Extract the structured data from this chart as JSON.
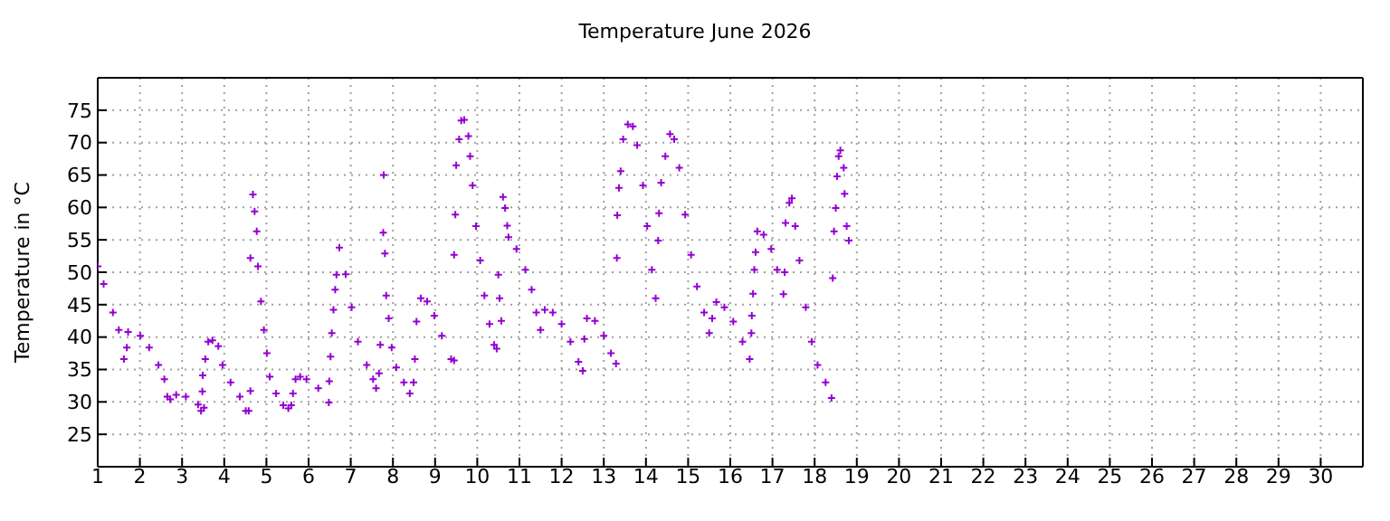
{
  "chart_data": {
    "type": "scatter",
    "title": "Temperature June 2026",
    "ylabel": "Temperature in °C",
    "xlim": [
      1,
      31
    ],
    "xticks": [
      1,
      2,
      3,
      4,
      5,
      6,
      7,
      8,
      9,
      10,
      11,
      12,
      13,
      14,
      15,
      16,
      17,
      18,
      19,
      20,
      21,
      22,
      23,
      24,
      25,
      26,
      27,
      28,
      29,
      30
    ],
    "ylim": [
      20,
      80
    ],
    "yticks": [
      25,
      30,
      35,
      40,
      45,
      50,
      55,
      60,
      65,
      70,
      75
    ],
    "grid": true,
    "marker": "cross",
    "series": [
      {
        "color": "#9400d3",
        "x": [
          1.0,
          1.14,
          1.36,
          1.5,
          1.62,
          1.69,
          1.72,
          2.01,
          2.22,
          2.44,
          2.58,
          2.65,
          2.72,
          2.86,
          3.09,
          3.38,
          3.45,
          3.52,
          3.48,
          3.49,
          3.55,
          3.62,
          3.72,
          3.86,
          3.96,
          4.15,
          4.37,
          4.51,
          4.58,
          4.62,
          4.62,
          4.68,
          4.72,
          4.77,
          4.8,
          4.87,
          4.94,
          5.01,
          5.08,
          5.23,
          5.4,
          5.52,
          5.59,
          5.63,
          5.69,
          5.8,
          5.95,
          6.23,
          6.48,
          6.49,
          6.52,
          6.55,
          6.59,
          6.63,
          6.66,
          6.73,
          6.88,
          7.02,
          7.17,
          7.38,
          7.53,
          7.6,
          7.67,
          7.7,
          7.77,
          7.78,
          7.81,
          7.84,
          7.9,
          7.97,
          8.08,
          8.26,
          8.4,
          8.49,
          8.52,
          8.56,
          8.66,
          8.81,
          8.98,
          9.16,
          9.38,
          9.45,
          9.45,
          9.48,
          9.5,
          9.57,
          9.62,
          9.69,
          9.79,
          9.83,
          9.89,
          9.97,
          10.07,
          10.17,
          10.29,
          10.4,
          10.46,
          10.5,
          10.53,
          10.57,
          10.61,
          10.66,
          10.71,
          10.74,
          10.93,
          11.14,
          11.29,
          11.4,
          11.5,
          11.6,
          11.79,
          12.0,
          12.21,
          12.4,
          12.5,
          12.54,
          12.6,
          12.79,
          13.0,
          13.17,
          13.29,
          13.31,
          13.32,
          13.36,
          13.4,
          13.46,
          13.57,
          13.69,
          13.79,
          13.93,
          14.03,
          14.14,
          14.23,
          14.29,
          14.31,
          14.36,
          14.46,
          14.57,
          14.67,
          14.79,
          14.93,
          15.07,
          15.21,
          15.38,
          15.5,
          15.57,
          15.67,
          15.86,
          16.07,
          16.29,
          16.46,
          16.5,
          16.51,
          16.54,
          16.57,
          16.6,
          16.64,
          16.79,
          16.97,
          17.11,
          17.26,
          17.29,
          17.31,
          17.4,
          17.46,
          17.54,
          17.64,
          17.79,
          17.93,
          18.07,
          18.26,
          18.4,
          18.43,
          18.46,
          18.5,
          18.53,
          18.57,
          18.61,
          18.69,
          18.71,
          18.76,
          18.81
        ],
        "values": [
          50.9,
          48.2,
          43.8,
          41.1,
          36.6,
          38.4,
          40.8,
          40.2,
          38.4,
          35.7,
          33.5,
          30.8,
          30.4,
          31.1,
          30.8,
          29.6,
          28.6,
          29.1,
          31.6,
          34.1,
          36.6,
          39.3,
          39.5,
          38.6,
          35.7,
          33.0,
          30.8,
          28.6,
          28.6,
          31.7,
          52.2,
          62.0,
          59.4,
          56.3,
          50.9,
          45.5,
          41.1,
          37.5,
          33.9,
          31.3,
          29.5,
          29.0,
          29.5,
          31.3,
          33.5,
          33.9,
          33.5,
          32.1,
          29.9,
          33.2,
          37.0,
          40.6,
          44.2,
          47.3,
          49.6,
          53.8,
          49.7,
          44.6,
          39.3,
          35.7,
          33.5,
          32.1,
          34.4,
          38.8,
          56.1,
          65.0,
          52.9,
          46.4,
          42.9,
          38.4,
          35.3,
          33.0,
          31.3,
          33.0,
          36.6,
          42.4,
          46.0,
          45.5,
          43.3,
          40.2,
          36.6,
          36.4,
          52.7,
          58.9,
          66.5,
          70.5,
          73.4,
          73.5,
          71.0,
          67.9,
          63.4,
          57.1,
          51.8,
          46.4,
          42.0,
          38.8,
          38.2,
          49.6,
          46.0,
          42.5,
          61.6,
          59.9,
          57.2,
          55.4,
          53.6,
          50.4,
          47.3,
          43.8,
          41.1,
          44.2,
          43.8,
          42.0,
          39.3,
          36.2,
          34.8,
          39.7,
          42.9,
          42.5,
          40.2,
          37.5,
          35.9,
          52.2,
          58.8,
          63.0,
          65.6,
          70.5,
          72.8,
          72.5,
          69.6,
          63.4,
          57.1,
          50.4,
          46.0,
          54.9,
          59.1,
          63.8,
          67.9,
          71.3,
          70.5,
          66.1,
          58.9,
          52.7,
          47.8,
          43.8,
          40.6,
          42.9,
          45.4,
          44.6,
          42.4,
          39.3,
          36.6,
          40.6,
          43.3,
          46.7,
          50.4,
          53.1,
          56.3,
          55.8,
          53.6,
          50.4,
          46.6,
          50.0,
          57.6,
          60.7,
          61.4,
          57.1,
          51.8,
          44.6,
          39.3,
          35.7,
          33.0,
          30.6,
          49.1,
          56.3,
          59.9,
          64.8,
          67.9,
          68.8,
          66.1,
          62.1,
          57.1,
          54.9
        ]
      }
    ]
  }
}
